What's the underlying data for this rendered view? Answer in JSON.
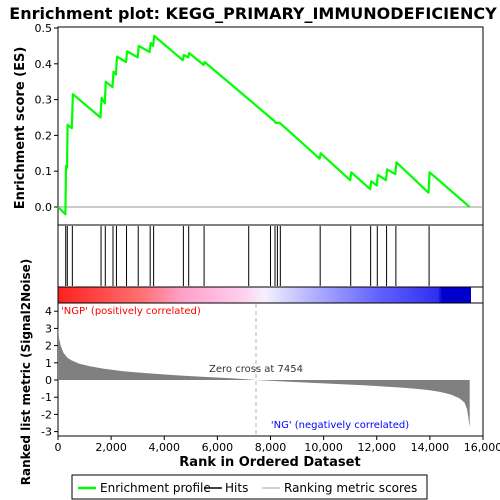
{
  "chart_data": {
    "type": "line",
    "title": "Enrichment plot: KEGG_PRIMARY_IMMUNODEFICIENCY",
    "es_panel": {
      "ylabel": "Enrichment score (ES)",
      "ylim": [
        -0.03,
        0.5
      ],
      "yticks": [
        "0.0",
        "0.1",
        "0.2",
        "0.3",
        "0.4",
        "0.5"
      ],
      "ytick_values": [
        0.0,
        0.1,
        0.2,
        0.3,
        0.4,
        0.5
      ],
      "series": [
        {
          "name": "Enrichment profile",
          "color": "#00ff00",
          "x": [
            0,
            280,
            300,
            340,
            360,
            520,
            560,
            1600,
            1640,
            1760,
            1800,
            2050,
            2090,
            2180,
            2220,
            2560,
            2600,
            3000,
            3040,
            3450,
            3490,
            3580,
            3620,
            4700,
            4740,
            4900,
            4940,
            5480,
            5520,
            8150,
            8190,
            8350,
            8390,
            9850,
            9890,
            11000,
            11040,
            11750,
            11790,
            12000,
            12040,
            12350,
            12390,
            12700,
            12740,
            13950,
            13990,
            15500
          ],
          "y": [
            0.0,
            -0.02,
            0.115,
            0.11,
            0.23,
            0.22,
            0.315,
            0.25,
            0.305,
            0.29,
            0.35,
            0.335,
            0.378,
            0.37,
            0.42,
            0.405,
            0.435,
            0.418,
            0.45,
            0.433,
            0.458,
            0.45,
            0.478,
            0.41,
            0.425,
            0.418,
            0.43,
            0.397,
            0.405,
            0.24,
            0.235,
            0.235,
            0.232,
            0.135,
            0.15,
            0.075,
            0.097,
            0.05,
            0.072,
            0.06,
            0.09,
            0.075,
            0.105,
            0.092,
            0.125,
            0.04,
            0.097,
            0.0
          ]
        }
      ]
    },
    "hits": {
      "name": "Hits",
      "x": [
        290,
        350,
        540,
        1620,
        1780,
        2070,
        2200,
        2580,
        3020,
        3470,
        3600,
        4720,
        4920,
        5500,
        7180,
        8000,
        8170,
        8260,
        8370,
        9870,
        11020,
        11770,
        12020,
        12370,
        12720,
        13970
      ]
    },
    "metric_panel": {
      "ylabel": "Ranked list metric (Signal2Noise)",
      "ylim": [
        -3,
        4.2
      ],
      "yticks": [
        "-3",
        "-2",
        "-1",
        "0",
        "1",
        "2",
        "3",
        "4"
      ],
      "ytick_values": [
        -3,
        -2,
        -1,
        0,
        1,
        2,
        3,
        4
      ],
      "series_name": "Ranking metric scores",
      "profile_x": [
        0,
        40,
        100,
        200,
        350,
        500,
        800,
        1200,
        1700,
        2500,
        3500,
        4500,
        5500,
        6500,
        7454,
        8500,
        9500,
        10500,
        11500,
        12500,
        13000,
        13500,
        14000,
        14400,
        14800,
        15100,
        15300,
        15400,
        15450,
        15500
      ],
      "profile_y": [
        3.1,
        2.4,
        2.0,
        1.6,
        1.3,
        1.15,
        0.95,
        0.8,
        0.66,
        0.5,
        0.38,
        0.27,
        0.18,
        0.1,
        0.0,
        -0.09,
        -0.16,
        -0.23,
        -0.3,
        -0.4,
        -0.45,
        -0.52,
        -0.6,
        -0.7,
        -0.85,
        -1.05,
        -1.3,
        -1.7,
        -2.2,
        -2.75
      ],
      "positive_label": "'NGP' (positively correlated)",
      "negative_label": "'NG' (negatively correlated)",
      "zero_cross_label": "Zero cross at 7454",
      "zero_cross": 7454
    },
    "xlabel": "Rank in Ordered Dataset",
    "xlim": [
      0,
      15500
    ],
    "xticks": [
      "0",
      "2,000",
      "4,000",
      "6,000",
      "8,000",
      "10,000",
      "12,000",
      "14,000",
      "16,000"
    ],
    "xtick_values": [
      0,
      2000,
      4000,
      6000,
      8000,
      10000,
      12000,
      14000,
      16000
    ],
    "legend": {
      "placement": "bottom",
      "entries": [
        {
          "label": "Enrichment profile",
          "color": "#00ff00"
        },
        {
          "label": "Hits",
          "color": "#000000"
        },
        {
          "label": "Ranking metric scores",
          "color": "#c0c0c0"
        }
      ]
    },
    "colors": {
      "positive": "#ff0000",
      "negative": "#0000ff",
      "metric_fill": "#808080"
    }
  }
}
